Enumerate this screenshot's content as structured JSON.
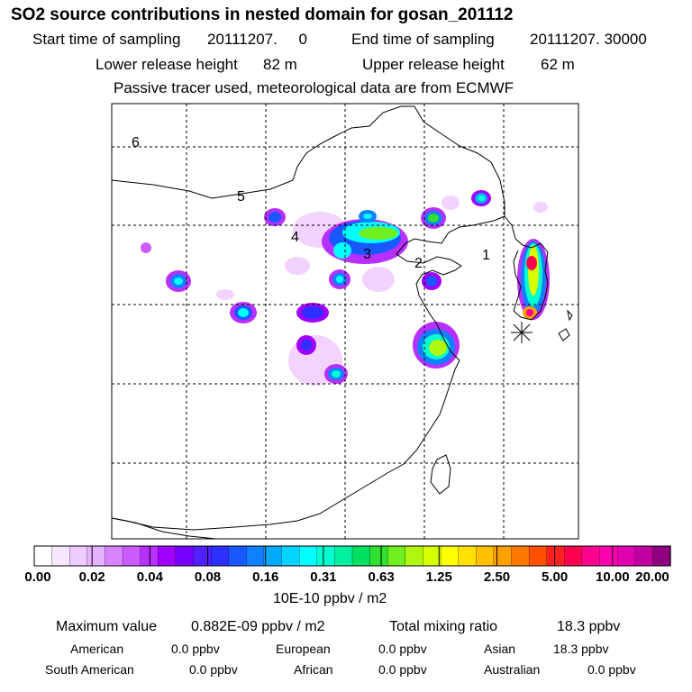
{
  "header": {
    "title": "SO2 source contributions in nested domain for gosan_201112",
    "start_label": "Start time of sampling",
    "start_value": "20111207.     0",
    "end_label": "End time of sampling",
    "end_value": "20111207. 30000",
    "lower_label": "Lower release height",
    "lower_value": "82 m",
    "upper_label": "Upper release height",
    "upper_value": "62 m",
    "note": "Passive tracer used, meteorological data are from ECMWF"
  },
  "map": {
    "region_labels": [
      "6",
      "5",
      "4",
      "3",
      "2",
      "1"
    ],
    "receptor_marker": "receptor-star"
  },
  "colorbar": {
    "ticks": [
      "0.00",
      "0.02",
      "0.04",
      "0.08",
      "0.16",
      "0.31",
      "0.63",
      "1.25",
      "2.50",
      "5.00",
      "10.00",
      "20.00"
    ],
    "unit": "10E-10 ppbv / m2",
    "colors": [
      "#ffffff",
      "#f7e6ff",
      "#efccff",
      "#e5b2ff",
      "#d884ff",
      "#cc5cff",
      "#b830ff",
      "#a000ff",
      "#7800ff",
      "#5020ff",
      "#2e30ff",
      "#1a58ff",
      "#1080ff",
      "#00aaff",
      "#00d4ff",
      "#00ffff",
      "#00ffd0",
      "#00f0a0",
      "#00e060",
      "#30e030",
      "#70ef20",
      "#b0f710",
      "#d8ff00",
      "#ffff00",
      "#ffe000",
      "#ffc000",
      "#ffa000",
      "#ff7800",
      "#ff5000",
      "#ff2020",
      "#ff0050",
      "#ff0090",
      "#ff00b0",
      "#e000b0",
      "#c000a0",
      "#900080"
    ]
  },
  "footer": {
    "max_label": "Maximum value",
    "max_value": "0.882E-09 ppbv / m2",
    "total_label": "Total mixing ratio",
    "total_value": "18.3 ppbv",
    "regions": [
      {
        "name": "American",
        "value": "0.0 ppbv"
      },
      {
        "name": "European",
        "value": "0.0 ppbv"
      },
      {
        "name": "Asian",
        "value": "18.3 ppbv"
      },
      {
        "name": "South American",
        "value": "0.0 ppbv"
      },
      {
        "name": "African",
        "value": "0.0 ppbv"
      },
      {
        "name": "Australian",
        "value": "0.0 ppbv"
      }
    ]
  }
}
